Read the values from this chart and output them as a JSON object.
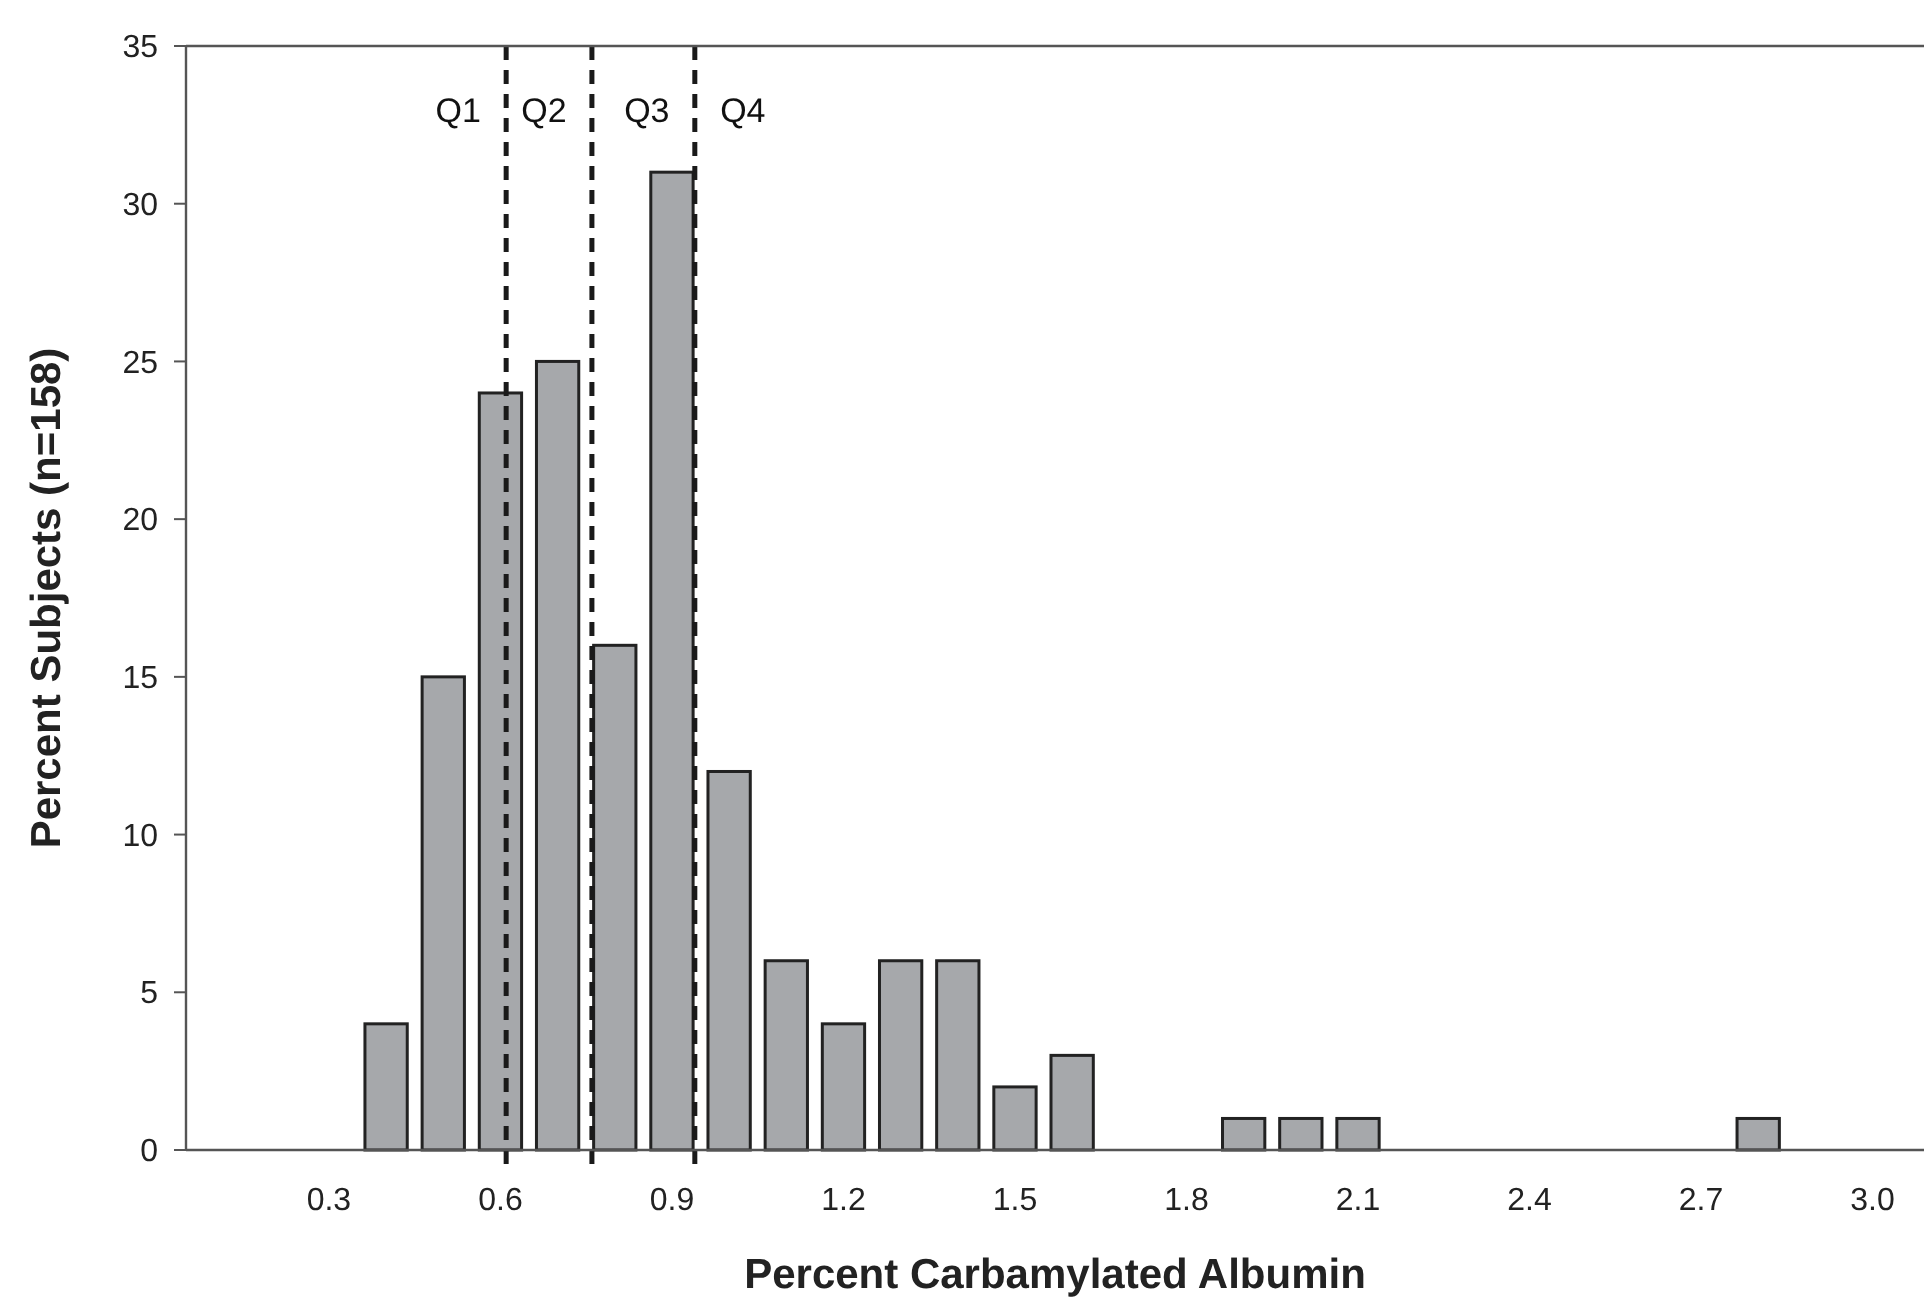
{
  "chart_data": {
    "type": "bar",
    "xlabel": "Percent Carbamylated Albumin",
    "ylabel": "Percent Subjects (n=158)",
    "x": [
      0.4,
      0.5,
      0.6,
      0.7,
      0.8,
      0.9,
      1.0,
      1.1,
      1.2,
      1.3,
      1.4,
      1.5,
      1.6,
      1.7,
      1.8,
      1.9,
      2.0,
      2.1,
      2.2,
      2.3,
      2.4,
      2.5,
      2.6,
      2.7,
      2.8
    ],
    "values": [
      4,
      15,
      24,
      25,
      16,
      31,
      12,
      6,
      4,
      6,
      6,
      2,
      3,
      0,
      0,
      1,
      1,
      1,
      0,
      0,
      0,
      0,
      0,
      0,
      1
    ],
    "color": "#a6a8ab",
    "xlim": [
      0.05,
      3.09
    ],
    "xticks": [
      {
        "value": 0.3,
        "label": "0.3"
      },
      {
        "value": 0.6,
        "label": "0.6"
      },
      {
        "value": 0.9,
        "label": "0.9"
      },
      {
        "value": 1.2,
        "label": "1.2"
      },
      {
        "value": 1.5,
        "label": "1.5"
      },
      {
        "value": 1.8,
        "label": "1.8"
      },
      {
        "value": 2.1,
        "label": "2.1"
      },
      {
        "value": 2.4,
        "label": "2.4"
      },
      {
        "value": 2.7,
        "label": "2.7"
      },
      {
        "value": 3.0,
        "label": "3.0"
      }
    ],
    "ylim": [
      0,
      35
    ],
    "yticks": [
      0,
      5,
      10,
      15,
      20,
      25,
      30,
      35
    ],
    "ref_lines": [
      {
        "axis": "x",
        "value": 0.61,
        "line_style": "dashed",
        "color": "#1a1a1a"
      },
      {
        "axis": "x",
        "value": 0.76,
        "line_style": "dashed",
        "color": "#1a1a1a"
      },
      {
        "axis": "x",
        "value": 0.94,
        "line_style": "dashed",
        "color": "#1a1a1a"
      }
    ],
    "annotations": [
      "Q1",
      "Q2",
      "Q3",
      "Q4"
    ],
    "grid": false
  }
}
